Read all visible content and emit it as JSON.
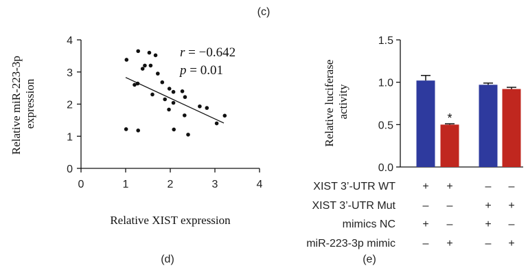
{
  "panel_labels": {
    "c": "(c)",
    "d": "(d)",
    "e": "(e)"
  },
  "chart_data": [
    {
      "type": "scatter",
      "panel": "d",
      "xlabel": "Relative XIST expression",
      "ylabel": "Relative miR-223-3p expression",
      "ylabel_lines": [
        "Relative miR-223-3p",
        "expression"
      ],
      "xlim": [
        0,
        4
      ],
      "ylim": [
        0,
        4
      ],
      "xticks": [
        "0",
        "1",
        "2",
        "3",
        "4"
      ],
      "yticks": [
        "0",
        "1",
        "2",
        "3",
        "4"
      ],
      "annotation_r": {
        "symbol": "r",
        "text": " = −0.642"
      },
      "annotation_p": {
        "symbol": "p",
        "text": " = 0.01"
      },
      "trendline": {
        "x": [
          1.0,
          3.2
        ],
        "y": [
          2.83,
          1.41
        ]
      },
      "points": [
        {
          "x": 1.02,
          "y": 3.38
        },
        {
          "x": 1.28,
          "y": 3.65
        },
        {
          "x": 1.53,
          "y": 3.6
        },
        {
          "x": 1.67,
          "y": 3.52
        },
        {
          "x": 1.38,
          "y": 3.1
        },
        {
          "x": 1.43,
          "y": 3.2
        },
        {
          "x": 1.56,
          "y": 3.2
        },
        {
          "x": 1.72,
          "y": 2.95
        },
        {
          "x": 1.2,
          "y": 2.6
        },
        {
          "x": 1.27,
          "y": 2.64
        },
        {
          "x": 1.82,
          "y": 2.68
        },
        {
          "x": 1.98,
          "y": 2.48
        },
        {
          "x": 2.07,
          "y": 2.38
        },
        {
          "x": 1.6,
          "y": 2.3
        },
        {
          "x": 2.27,
          "y": 2.4
        },
        {
          "x": 1.88,
          "y": 2.15
        },
        {
          "x": 2.33,
          "y": 2.22
        },
        {
          "x": 2.07,
          "y": 2.04
        },
        {
          "x": 2.66,
          "y": 1.93
        },
        {
          "x": 2.82,
          "y": 1.88
        },
        {
          "x": 1.97,
          "y": 1.83
        },
        {
          "x": 2.32,
          "y": 1.65
        },
        {
          "x": 3.04,
          "y": 1.4
        },
        {
          "x": 3.22,
          "y": 1.64
        },
        {
          "x": 1.01,
          "y": 1.22
        },
        {
          "x": 1.28,
          "y": 1.18
        },
        {
          "x": 2.08,
          "y": 1.21
        },
        {
          "x": 2.4,
          "y": 1.05
        }
      ]
    },
    {
      "type": "bar",
      "panel": "e",
      "ylabel": "Relative luciferase activity",
      "ylabel_lines": [
        "Relative luciferase",
        "activity"
      ],
      "ylim": [
        0,
        1.5
      ],
      "yticks": [
        "0.0",
        "0.5",
        "1.0",
        "1.5"
      ],
      "bars": [
        {
          "value": 1.02,
          "error": 0.06,
          "color": "#2e3a9e",
          "star": ""
        },
        {
          "value": 0.5,
          "error": 0.01,
          "color": "#c0271f",
          "star": "*"
        },
        {
          "value": 0.97,
          "error": 0.02,
          "color": "#2e3a9e",
          "star": ""
        },
        {
          "value": 0.92,
          "error": 0.02,
          "color": "#c0271f",
          "star": ""
        }
      ],
      "condition_rows": [
        {
          "label": "XIST 3’-UTR WT",
          "marks": [
            "+",
            "+",
            "–",
            "–"
          ]
        },
        {
          "label": "XIST 3’-UTR Mut",
          "marks": [
            "–",
            "–",
            "+",
            "+"
          ]
        },
        {
          "label": "mimics NC",
          "marks": [
            "+",
            "–",
            "+",
            "–"
          ]
        },
        {
          "label": "miR-223-3p mimic",
          "marks": [
            "–",
            "+",
            "–",
            "+"
          ]
        }
      ]
    }
  ]
}
